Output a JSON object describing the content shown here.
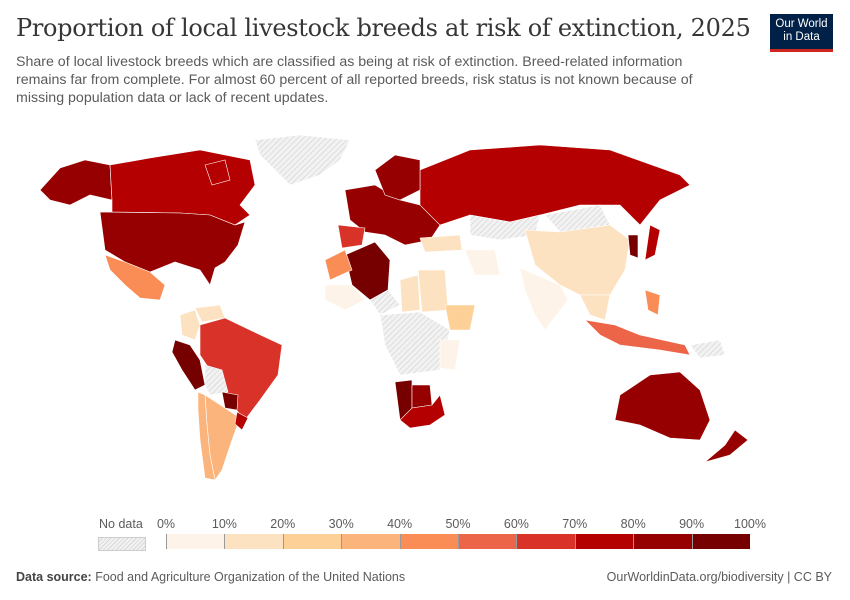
{
  "header": {
    "title": "Proportion of local livestock breeds at risk of extinction, 2025",
    "subtitle": "Share of local livestock breeds which are classified as being at risk of extinction. Breed-related information remains far from complete. For almost 60 percent of all reported breeds, risk status is not known because of missing population data or lack of recent updates.",
    "logo_text": "Our World in Data"
  },
  "legend": {
    "no_data_label": "No data",
    "ticks": [
      "0%",
      "10%",
      "20%",
      "30%",
      "40%",
      "50%",
      "60%",
      "70%",
      "80%",
      "90%",
      "100%"
    ],
    "colors": [
      "#fef3e8",
      "#fde2c2",
      "#fcd096",
      "#fbb57c",
      "#f98d55",
      "#ed6548",
      "#d83229",
      "#b40000",
      "#970000",
      "#760000"
    ],
    "no_data_color": "#e6e6e6"
  },
  "map_data": [
    {
      "region": "Alaska (US)",
      "value": 88
    },
    {
      "region": "Canada",
      "value": 78
    },
    {
      "region": "United States",
      "value": 88
    },
    {
      "region": "Greenland",
      "value": null
    },
    {
      "region": "Mexico",
      "value": 42
    },
    {
      "region": "Colombia",
      "value": 18
    },
    {
      "region": "Venezuela",
      "value": 15
    },
    {
      "region": "Peru",
      "value": 92
    },
    {
      "region": "Brazil",
      "value": 68
    },
    {
      "region": "Bolivia",
      "value": null
    },
    {
      "region": "Paraguay",
      "value": 92
    },
    {
      "region": "Argentina",
      "value": 38
    },
    {
      "region": "Chile",
      "value": 35
    },
    {
      "region": "Uruguay",
      "value": 72
    },
    {
      "region": "Russia",
      "value": 78
    },
    {
      "region": "Western Europe",
      "value": 85
    },
    {
      "region": "Scandinavia",
      "value": 80
    },
    {
      "region": "Iberia",
      "value": 62
    },
    {
      "region": "Turkey",
      "value": 18
    },
    {
      "region": "Iran",
      "value": 8
    },
    {
      "region": "Kazakhstan",
      "value": null
    },
    {
      "region": "Algeria",
      "value": 92
    },
    {
      "region": "Morocco",
      "value": 45
    },
    {
      "region": "Mali",
      "value": 5
    },
    {
      "region": "Niger",
      "value": null
    },
    {
      "region": "Chad",
      "value": 12
    },
    {
      "region": "Sudan",
      "value": 12
    },
    {
      "region": "Ethiopia",
      "value": 25
    },
    {
      "region": "Central Africa",
      "value": null
    },
    {
      "region": "Tanzania",
      "value": 5
    },
    {
      "region": "Namibia",
      "value": 92
    },
    {
      "region": "Botswana",
      "value": 85
    },
    {
      "region": "South Africa",
      "value": 75
    },
    {
      "region": "Mongolia",
      "value": null
    },
    {
      "region": "China",
      "value": 18
    },
    {
      "region": "India",
      "value": 8
    },
    {
      "region": "Korea",
      "value": 92
    },
    {
      "region": "Japan",
      "value": 75
    },
    {
      "region": "Southeast Asia",
      "value": 18
    },
    {
      "region": "Indonesia",
      "value": 52
    },
    {
      "region": "Philippines",
      "value": 45
    },
    {
      "region": "Papua New Guinea",
      "value": null
    },
    {
      "region": "Australia",
      "value": 88
    },
    {
      "region": "New Zealand",
      "value": 82
    }
  ],
  "footer": {
    "source_label": "Data source:",
    "source": "Food and Agriculture Organization of the United Nations",
    "link": "OurWorldinData.org/biodiversity | CC BY"
  }
}
